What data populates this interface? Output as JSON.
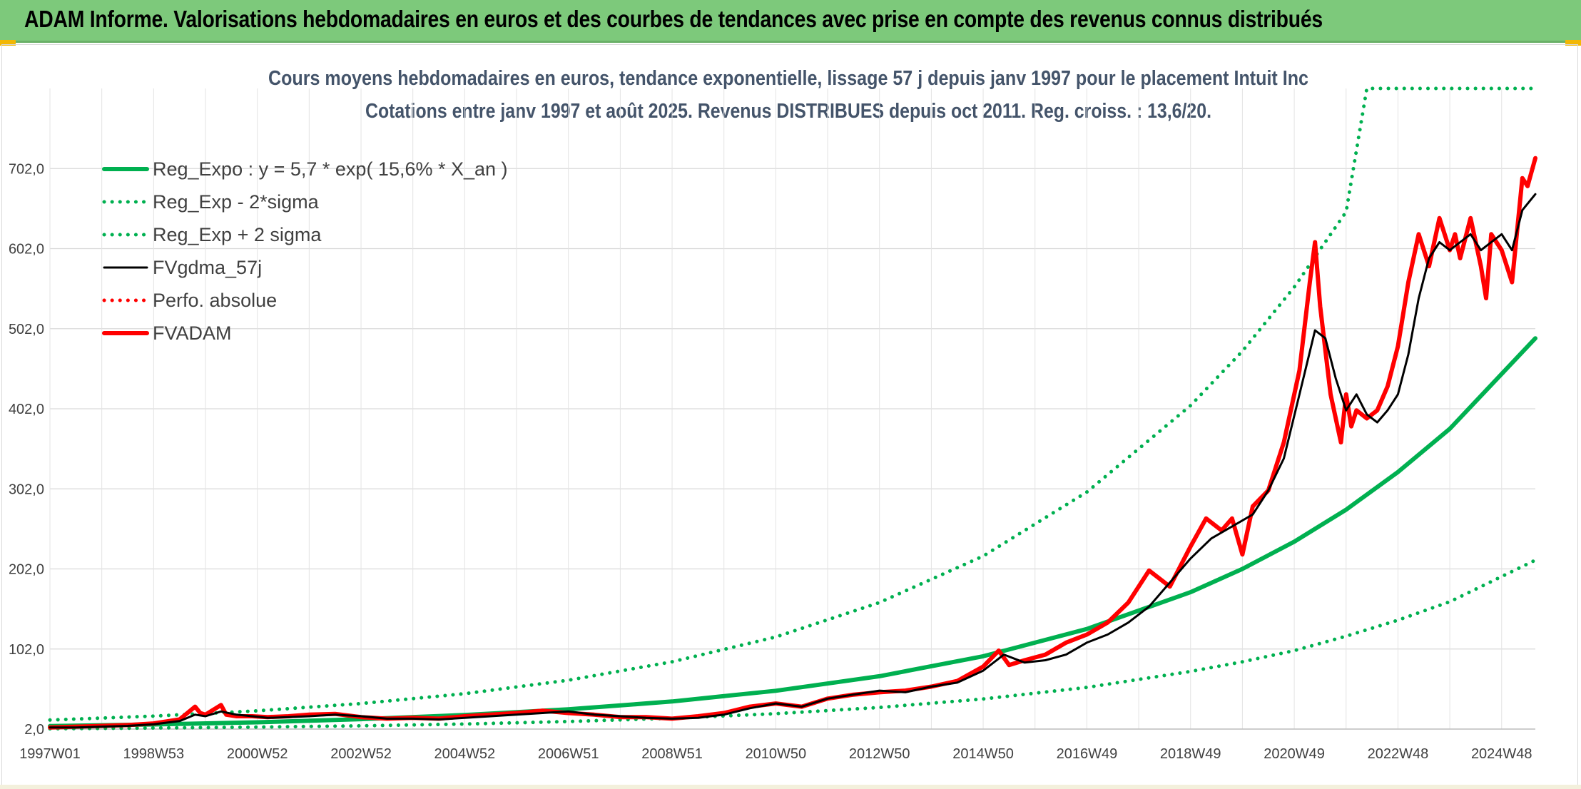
{
  "header": {
    "title": "ADAM Informe. Valorisations hebdomadaires en euros et des courbes de tendances avec prise en compte des revenus connus distribués"
  },
  "chart_data": {
    "type": "line",
    "title": "Cours moyens hebdomadaires en euros, tendance exponentielle, lissage 57 j depuis janv 1997 pour le placement Intuit Inc",
    "subtitle": "Cotations entre janv 1997 et août 2025. Revenus DISTRIBUES depuis oct 2011. Reg. croiss. : 13,6/20.",
    "xlabel": "",
    "ylabel": "",
    "ylim": [
      2,
      802
    ],
    "yticks": [
      "2,0",
      "102,0",
      "202,0",
      "302,0",
      "402,0",
      "502,0",
      "602,0",
      "702,0"
    ],
    "ytick_values": [
      2,
      102,
      202,
      302,
      402,
      502,
      602,
      702
    ],
    "xlim": [
      1997.0,
      2025.65
    ],
    "xticks": [
      "1997W01",
      "1998W53",
      "2000W52",
      "2002W52",
      "2004W52",
      "2006W51",
      "2008W51",
      "2010W50",
      "2012W50",
      "2014W50",
      "2016W49",
      "2018W49",
      "2020W49",
      "2022W48",
      "2024W48"
    ],
    "xtick_values": [
      1997.0,
      1999.0,
      2001.0,
      2003.0,
      2005.0,
      2007.0,
      2009.0,
      2011.0,
      2013.0,
      2015.0,
      2017.0,
      2019.0,
      2021.0,
      2023.0,
      2025.0
    ],
    "grid": true,
    "legend_position": "top-left",
    "series": [
      {
        "name": "Reg_Expo : y = 5,7 * exp( 15,6% *  X_an )",
        "color": "#00b050",
        "style": "solid-thick",
        "x": [
          1997.0,
          1999.0,
          2001.0,
          2003.0,
          2005.0,
          2007.0,
          2009.0,
          2011.0,
          2013.0,
          2015.0,
          2017.0,
          2019.0,
          2020.0,
          2021.0,
          2022.0,
          2023.0,
          2024.0,
          2025.65
        ],
        "y": [
          5.7,
          7.8,
          10.5,
          14.4,
          19.6,
          26.7,
          36.5,
          49.8,
          68.0,
          93.0,
          127.0,
          173.0,
          202.0,
          236.0,
          276.0,
          323.0,
          377.0,
          490.0
        ]
      },
      {
        "name": "Reg_Exp - 2*sigma",
        "color": "#00b050",
        "style": "dotted",
        "x": [
          1997.0,
          1999.0,
          2001.0,
          2003.0,
          2005.0,
          2007.0,
          2009.0,
          2011.0,
          2013.0,
          2015.0,
          2017.0,
          2019.0,
          2020.0,
          2021.0,
          2022.0,
          2023.0,
          2024.0,
          2025.65
        ],
        "y": [
          2.4,
          3.3,
          4.5,
          6.1,
          8.3,
          11.4,
          15.5,
          21.2,
          29.0,
          39.6,
          54.0,
          74.0,
          86.0,
          100.0,
          118.0,
          138.0,
          161.0,
          213.0
        ]
      },
      {
        "name": "Reg_Exp + 2 sigma",
        "color": "#00b050",
        "style": "dotted",
        "x": [
          1997.0,
          1999.0,
          2001.0,
          2003.0,
          2005.0,
          2007.0,
          2009.0,
          2011.0,
          2013.0,
          2015.0,
          2017.0,
          2019.0,
          2020.0,
          2021.0,
          2022.0,
          2022.4,
          2023.0,
          2024.0,
          2025.65
        ],
        "y": [
          13.3,
          18.2,
          24.8,
          33.9,
          46.2,
          63.0,
          86.0,
          117.0,
          160.0,
          218.0,
          298.0,
          406.0,
          474.0,
          554.0,
          648.0,
          802.0,
          802.0,
          802.0,
          802.0
        ]
      },
      {
        "name": "FVgdma_57j",
        "color": "#000000",
        "style": "solid",
        "x": [
          1997.0,
          1997.5,
          1998.0,
          1998.5,
          1999.0,
          1999.5,
          1999.8,
          2000.0,
          2000.3,
          2000.6,
          2000.9,
          2001.2,
          2001.6,
          2002.0,
          2002.5,
          2003.0,
          2003.5,
          2004.0,
          2004.5,
          2005.0,
          2005.5,
          2006.0,
          2006.5,
          2007.0,
          2007.5,
          2008.0,
          2008.5,
          2009.0,
          2009.5,
          2010.0,
          2010.5,
          2011.0,
          2011.5,
          2012.0,
          2012.5,
          2013.0,
          2013.5,
          2014.0,
          2014.5,
          2015.0,
          2015.4,
          2015.8,
          2016.2,
          2016.6,
          2017.0,
          2017.4,
          2017.8,
          2018.2,
          2018.6,
          2019.0,
          2019.4,
          2019.8,
          2020.2,
          2020.5,
          2020.8,
          2021.1,
          2021.4,
          2021.6,
          2021.8,
          2022.0,
          2022.2,
          2022.4,
          2022.6,
          2022.8,
          2023.0,
          2023.2,
          2023.4,
          2023.6,
          2023.8,
          2024.0,
          2024.2,
          2024.4,
          2024.6,
          2024.8,
          2025.0,
          2025.2,
          2025.4,
          2025.65
        ],
        "y": [
          4,
          4,
          5,
          6,
          8,
          12,
          20,
          18,
          24,
          20,
          18,
          16,
          17,
          18,
          20,
          18,
          15,
          15,
          14,
          16,
          18,
          20,
          22,
          24,
          20,
          18,
          16,
          15,
          16,
          20,
          28,
          34,
          30,
          40,
          45,
          50,
          48,
          55,
          60,
          75,
          95,
          85,
          88,
          95,
          110,
          120,
          135,
          155,
          185,
          215,
          240,
          255,
          270,
          300,
          340,
          420,
          500,
          490,
          440,
          400,
          420,
          395,
          385,
          400,
          420,
          470,
          540,
          590,
          610,
          600,
          610,
          620,
          600,
          610,
          620,
          600,
          650,
          670
        ]
      },
      {
        "name": "Perfo. absolue",
        "color": "#ff0000",
        "style": "dotted",
        "x": [],
        "y": []
      },
      {
        "name": "FVADAM",
        "color": "#ff0000",
        "style": "solid-thick",
        "x": [
          1997.0,
          1997.5,
          1998.0,
          1998.5,
          1999.0,
          1999.5,
          1999.8,
          1999.9,
          2000.0,
          2000.3,
          2000.4,
          2000.6,
          2000.9,
          2001.2,
          2001.6,
          2002.0,
          2002.5,
          2003.0,
          2003.5,
          2004.0,
          2004.5,
          2005.0,
          2005.5,
          2006.0,
          2006.5,
          2007.0,
          2007.5,
          2008.0,
          2008.5,
          2009.0,
          2009.5,
          2010.0,
          2010.5,
          2011.0,
          2011.5,
          2012.0,
          2012.5,
          2013.0,
          2013.5,
          2014.0,
          2014.5,
          2015.0,
          2015.3,
          2015.5,
          2015.8,
          2016.2,
          2016.6,
          2017.0,
          2017.4,
          2017.8,
          2018.2,
          2018.6,
          2019.0,
          2019.3,
          2019.6,
          2019.8,
          2020.0,
          2020.2,
          2020.5,
          2020.8,
          2021.1,
          2021.3,
          2021.4,
          2021.5,
          2021.7,
          2021.9,
          2022.0,
          2022.1,
          2022.2,
          2022.4,
          2022.6,
          2022.8,
          2023.0,
          2023.2,
          2023.4,
          2023.6,
          2023.8,
          2024.0,
          2024.1,
          2024.2,
          2024.4,
          2024.6,
          2024.7,
          2024.8,
          2025.0,
          2025.2,
          2025.4,
          2025.5,
          2025.65
        ],
        "y": [
          4,
          5,
          6,
          7,
          9,
          14,
          30,
          22,
          20,
          32,
          20,
          18,
          18,
          17,
          18,
          20,
          21,
          17,
          15,
          16,
          15,
          18,
          20,
          22,
          25,
          22,
          20,
          17,
          17,
          15,
          18,
          22,
          30,
          34,
          30,
          40,
          45,
          48,
          50,
          55,
          62,
          80,
          100,
          82,
          88,
          95,
          110,
          120,
          135,
          160,
          200,
          180,
          230,
          265,
          250,
          265,
          220,
          280,
          300,
          360,
          450,
          560,
          610,
          530,
          420,
          360,
          420,
          380,
          400,
          390,
          400,
          430,
          480,
          560,
          620,
          580,
          640,
          600,
          620,
          590,
          640,
          580,
          540,
          620,
          600,
          560,
          690,
          680,
          715
        ]
      }
    ]
  }
}
